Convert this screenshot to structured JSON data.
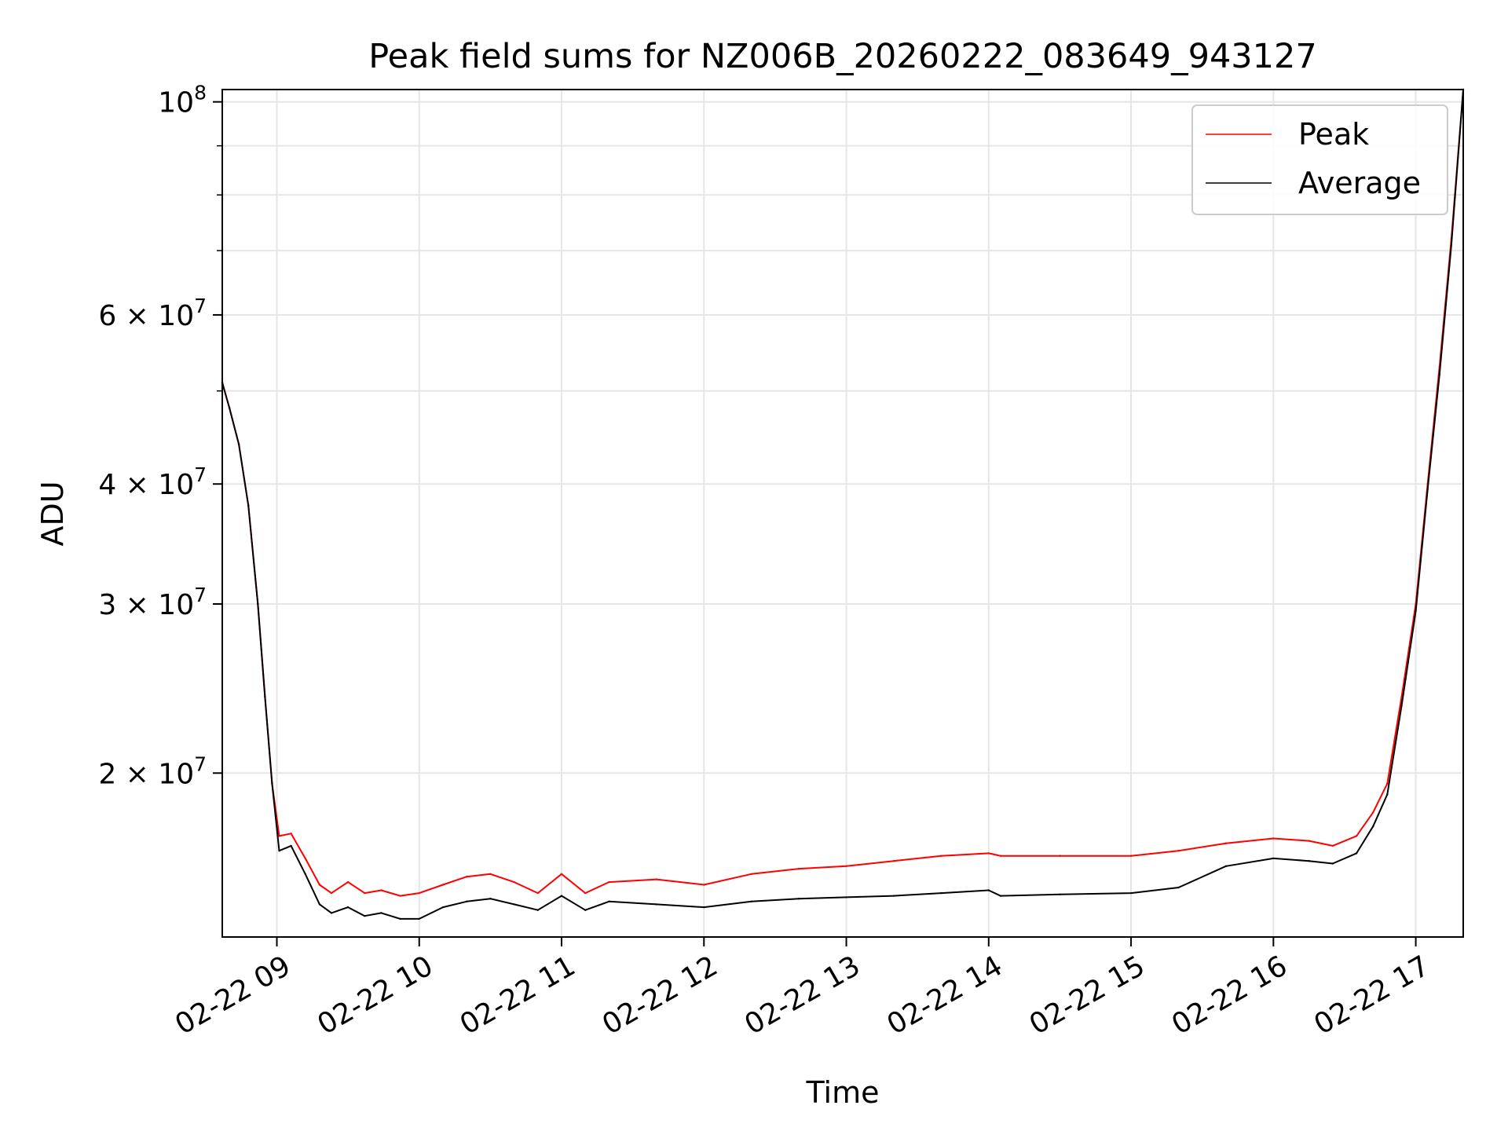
{
  "chart_data": {
    "type": "line",
    "title": "Peak field sums for NZ006B_20260222_083649_943127",
    "xlabel": "Time",
    "ylabel": "ADU",
    "yscale": "log",
    "grid": true,
    "legend_position": "top-right",
    "xlim": [
      "2026-02-22 08:37",
      "2026-02-22 17:20"
    ],
    "ylim": [
      13500000,
      103000000
    ],
    "x_ticks": [
      {
        "value": "2026-02-22 09:00",
        "label": "02-22 09"
      },
      {
        "value": "2026-02-22 10:00",
        "label": "02-22 10"
      },
      {
        "value": "2026-02-22 11:00",
        "label": "02-22 11"
      },
      {
        "value": "2026-02-22 12:00",
        "label": "02-22 12"
      },
      {
        "value": "2026-02-22 13:00",
        "label": "02-22 13"
      },
      {
        "value": "2026-02-22 14:00",
        "label": "02-22 14"
      },
      {
        "value": "2026-02-22 15:00",
        "label": "02-22 15"
      },
      {
        "value": "2026-02-22 16:00",
        "label": "02-22 16"
      },
      {
        "value": "2026-02-22 17:00",
        "label": "02-22 17"
      }
    ],
    "y_ticks": [
      {
        "value": 20000000,
        "base": "2 × 10",
        "exp": "7"
      },
      {
        "value": 30000000,
        "base": "3 × 10",
        "exp": "7"
      },
      {
        "value": 40000000,
        "base": "4 × 10",
        "exp": "7"
      },
      {
        "value": 60000000,
        "base": "6 × 10",
        "exp": "7"
      },
      {
        "value": 100000000,
        "base": "10",
        "exp": "8"
      }
    ],
    "y_minor_gridlines": [
      50000000,
      70000000,
      80000000,
      90000000
    ],
    "series": [
      {
        "name": "Peak",
        "color": "#ff0000",
        "x": [
          "2026-02-22 08:37",
          "2026-02-22 08:40",
          "2026-02-22 08:44",
          "2026-02-22 08:48",
          "2026-02-22 08:52",
          "2026-02-22 08:55",
          "2026-02-22 08:58",
          "2026-02-22 09:01",
          "2026-02-22 09:06",
          "2026-02-22 09:12",
          "2026-02-22 09:18",
          "2026-02-22 09:23",
          "2026-02-22 09:30",
          "2026-02-22 09:37",
          "2026-02-22 09:44",
          "2026-02-22 09:52",
          "2026-02-22 10:00",
          "2026-02-22 10:10",
          "2026-02-22 10:20",
          "2026-02-22 10:30",
          "2026-02-22 10:40",
          "2026-02-22 10:50",
          "2026-02-22 11:00",
          "2026-02-22 11:10",
          "2026-02-22 11:20",
          "2026-02-22 11:40",
          "2026-02-22 12:00",
          "2026-02-22 12:20",
          "2026-02-22 12:40",
          "2026-02-22 13:00",
          "2026-02-22 13:20",
          "2026-02-22 13:40",
          "2026-02-22 14:00",
          "2026-02-22 14:05",
          "2026-02-22 14:30",
          "2026-02-22 15:00",
          "2026-02-22 15:20",
          "2026-02-22 15:40",
          "2026-02-22 16:00",
          "2026-02-22 16:15",
          "2026-02-22 16:25",
          "2026-02-22 16:35",
          "2026-02-22 16:42",
          "2026-02-22 16:48",
          "2026-02-22 16:54",
          "2026-02-22 17:00",
          "2026-02-22 17:05",
          "2026-02-22 17:10",
          "2026-02-22 17:15",
          "2026-02-22 17:20"
        ],
        "values": [
          51000000,
          48000000,
          44000000,
          38000000,
          30000000,
          24000000,
          19500000,
          17200000,
          17300000,
          16300000,
          15300000,
          15000000,
          15400000,
          15000000,
          15100000,
          14900000,
          15000000,
          15300000,
          15600000,
          15700000,
          15400000,
          15000000,
          15700000,
          15000000,
          15400000,
          15500000,
          15300000,
          15700000,
          15900000,
          16000000,
          16200000,
          16400000,
          16500000,
          16400000,
          16400000,
          16400000,
          16600000,
          16900000,
          17100000,
          17000000,
          16800000,
          17200000,
          18200000,
          19500000,
          24000000,
          30000000,
          40000000,
          53000000,
          72000000,
          103000000
        ]
      },
      {
        "name": "Average",
        "color": "#000000",
        "x": [
          "2026-02-22 08:37",
          "2026-02-22 08:40",
          "2026-02-22 08:44",
          "2026-02-22 08:48",
          "2026-02-22 08:52",
          "2026-02-22 08:55",
          "2026-02-22 08:58",
          "2026-02-22 09:01",
          "2026-02-22 09:06",
          "2026-02-22 09:12",
          "2026-02-22 09:18",
          "2026-02-22 09:23",
          "2026-02-22 09:30",
          "2026-02-22 09:37",
          "2026-02-22 09:44",
          "2026-02-22 09:52",
          "2026-02-22 10:00",
          "2026-02-22 10:10",
          "2026-02-22 10:20",
          "2026-02-22 10:30",
          "2026-02-22 10:40",
          "2026-02-22 10:50",
          "2026-02-22 11:00",
          "2026-02-22 11:10",
          "2026-02-22 11:20",
          "2026-02-22 11:40",
          "2026-02-22 12:00",
          "2026-02-22 12:20",
          "2026-02-22 12:40",
          "2026-02-22 13:00",
          "2026-02-22 13:20",
          "2026-02-22 13:40",
          "2026-02-22 14:00",
          "2026-02-22 14:05",
          "2026-02-22 14:30",
          "2026-02-22 15:00",
          "2026-02-22 15:20",
          "2026-02-22 15:40",
          "2026-02-22 16:00",
          "2026-02-22 16:15",
          "2026-02-22 16:25",
          "2026-02-22 16:35",
          "2026-02-22 16:42",
          "2026-02-22 16:48",
          "2026-02-22 16:54",
          "2026-02-22 17:00",
          "2026-02-22 17:05",
          "2026-02-22 17:10",
          "2026-02-22 17:15",
          "2026-02-22 17:20"
        ],
        "values": [
          51000000,
          48000000,
          44000000,
          38000000,
          30000000,
          24000000,
          19500000,
          16600000,
          16800000,
          15700000,
          14600000,
          14300000,
          14500000,
          14200000,
          14300000,
          14100000,
          14100000,
          14500000,
          14700000,
          14800000,
          14600000,
          14400000,
          14900000,
          14400000,
          14700000,
          14600000,
          14500000,
          14700000,
          14800000,
          14850000,
          14900000,
          15000000,
          15100000,
          14900000,
          14950000,
          15000000,
          15200000,
          16000000,
          16300000,
          16200000,
          16100000,
          16500000,
          17600000,
          19000000,
          23500000,
          29500000,
          39500000,
          52000000,
          71000000,
          103000000
        ]
      }
    ]
  }
}
